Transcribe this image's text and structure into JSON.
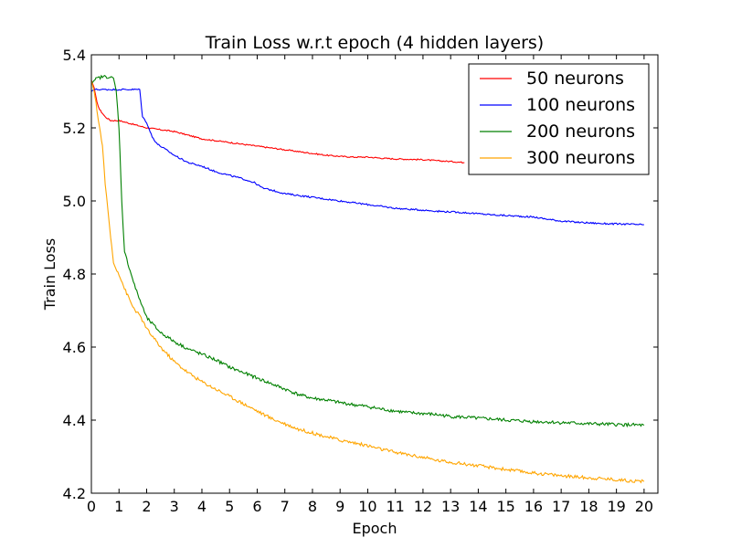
{
  "chart_data": {
    "type": "line",
    "title": "Train Loss w.r.t epoch (4 hidden layers)",
    "xlabel": "Epoch",
    "ylabel": "Train Loss",
    "xlim": [
      0,
      20.5
    ],
    "ylim": [
      4.2,
      5.4
    ],
    "xticks": [
      0,
      1,
      2,
      3,
      4,
      5,
      6,
      7,
      8,
      9,
      10,
      11,
      12,
      13,
      14,
      15,
      16,
      17,
      18,
      19,
      20
    ],
    "xtick_labels": [
      "0",
      "1",
      "2",
      "3",
      "4",
      "5",
      "6",
      "7",
      "8",
      "9",
      "10",
      "11",
      "12",
      "13",
      "14",
      "15",
      "16",
      "17",
      "18",
      "19",
      "20"
    ],
    "yticks": [
      4.2,
      4.4,
      4.6,
      4.8,
      5.0,
      5.2,
      5.4
    ],
    "ytick_labels": [
      "4.2",
      "4.4",
      "4.6",
      "4.8",
      "5.0",
      "5.2",
      "5.4"
    ],
    "grid": false,
    "legend_position": "top-right",
    "series": [
      {
        "name": "50 neurons",
        "color": "#ff0000",
        "x": [
          0,
          0.1,
          0.2,
          0.3,
          0.4,
          0.5,
          0.7,
          1.0,
          1.5,
          2.0,
          2.5,
          3.0,
          3.5,
          4.0,
          4.5,
          5.0,
          5.5,
          6.0,
          6.5,
          7.0,
          7.5,
          8.0,
          8.5,
          9.0,
          9.5,
          10.0,
          10.5,
          11.0,
          11.5,
          12.0,
          12.5,
          13.0,
          13.5
        ],
        "y": [
          5.33,
          5.31,
          5.27,
          5.25,
          5.24,
          5.23,
          5.22,
          5.22,
          5.21,
          5.2,
          5.195,
          5.19,
          5.18,
          5.17,
          5.165,
          5.16,
          5.155,
          5.15,
          5.145,
          5.14,
          5.135,
          5.13,
          5.125,
          5.122,
          5.12,
          5.12,
          5.117,
          5.115,
          5.114,
          5.113,
          5.11,
          5.108,
          5.105
        ]
      },
      {
        "name": "100 neurons",
        "color": "#0000ff",
        "x": [
          0,
          0.1,
          0.3,
          0.5,
          0.8,
          1.0,
          1.3,
          1.6,
          1.75,
          1.85,
          2.0,
          2.2,
          2.4,
          2.7,
          3.0,
          3.5,
          4.0,
          4.5,
          5.0,
          5.5,
          5.9,
          6.2,
          6.5,
          7.0,
          7.5,
          8.0,
          8.5,
          9.0,
          9.5,
          10.0,
          10.5,
          11.0,
          11.5,
          12.0,
          12.5,
          13.0,
          13.5,
          14.0,
          14.5,
          15.0,
          15.5,
          16.0,
          16.5,
          17.0,
          17.5,
          18.0,
          18.5,
          19.0,
          19.5,
          20.0
        ],
        "y": [
          5.3,
          5.305,
          5.305,
          5.305,
          5.305,
          5.305,
          5.305,
          5.305,
          5.305,
          5.23,
          5.215,
          5.175,
          5.155,
          5.14,
          5.125,
          5.105,
          5.095,
          5.08,
          5.07,
          5.06,
          5.05,
          5.035,
          5.03,
          5.02,
          5.015,
          5.01,
          5.005,
          5.0,
          4.995,
          4.99,
          4.985,
          4.98,
          4.977,
          4.975,
          4.972,
          4.97,
          4.968,
          4.965,
          4.962,
          4.96,
          4.958,
          4.956,
          4.95,
          4.945,
          4.942,
          4.94,
          4.938,
          4.937,
          4.936,
          4.935
        ]
      },
      {
        "name": "200 neurons",
        "color": "#008000",
        "x": [
          0,
          0.1,
          0.2,
          0.4,
          0.6,
          0.8,
          0.9,
          1.0,
          1.1,
          1.2,
          1.4,
          1.6,
          1.8,
          2.0,
          2.5,
          3.0,
          3.5,
          4.0,
          4.5,
          5.0,
          5.5,
          6.0,
          6.5,
          7.0,
          7.5,
          8.0,
          8.5,
          9.0,
          9.5,
          10.0,
          10.5,
          11.0,
          11.5,
          12.0,
          12.5,
          13.0,
          13.5,
          14.0,
          14.5,
          15.0,
          15.5,
          16.0,
          16.5,
          17.0,
          17.5,
          18.0,
          18.5,
          19.0,
          19.5,
          20.0
        ],
        "y": [
          5.32,
          5.33,
          5.335,
          5.34,
          5.34,
          5.335,
          5.3,
          5.2,
          5.0,
          4.86,
          4.81,
          4.76,
          4.72,
          4.68,
          4.64,
          4.615,
          4.595,
          4.58,
          4.565,
          4.545,
          4.53,
          4.515,
          4.5,
          4.485,
          4.47,
          4.46,
          4.455,
          4.448,
          4.442,
          4.437,
          4.43,
          4.425,
          4.42,
          4.418,
          4.415,
          4.41,
          4.408,
          4.405,
          4.403,
          4.4,
          4.398,
          4.396,
          4.395,
          4.393,
          4.392,
          4.39,
          4.389,
          4.388,
          4.387,
          4.386
        ]
      },
      {
        "name": "300 neurons",
        "color": "#ffa500",
        "x": [
          0,
          0.1,
          0.2,
          0.3,
          0.4,
          0.5,
          0.6,
          0.7,
          0.8,
          1.0,
          1.2,
          1.5,
          1.8,
          2.0,
          2.5,
          3.0,
          3.5,
          4.0,
          4.5,
          5.0,
          5.5,
          6.0,
          6.5,
          7.0,
          7.5,
          8.0,
          8.5,
          9.0,
          9.5,
          10.0,
          10.5,
          11.0,
          11.5,
          12.0,
          12.5,
          13.0,
          13.5,
          14.0,
          14.5,
          15.0,
          15.5,
          16.0,
          16.5,
          17.0,
          17.5,
          18.0,
          18.5,
          19.0,
          19.5,
          20.0
        ],
        "y": [
          5.33,
          5.3,
          5.25,
          5.2,
          5.15,
          5.05,
          4.97,
          4.9,
          4.83,
          4.8,
          4.76,
          4.71,
          4.68,
          4.65,
          4.6,
          4.56,
          4.53,
          4.505,
          4.485,
          4.465,
          4.445,
          4.425,
          4.405,
          4.39,
          4.375,
          4.365,
          4.355,
          4.345,
          4.338,
          4.33,
          4.32,
          4.312,
          4.305,
          4.298,
          4.29,
          4.285,
          4.28,
          4.275,
          4.27,
          4.265,
          4.26,
          4.255,
          4.252,
          4.248,
          4.245,
          4.242,
          4.24,
          4.237,
          4.234,
          4.232
        ]
      }
    ]
  }
}
